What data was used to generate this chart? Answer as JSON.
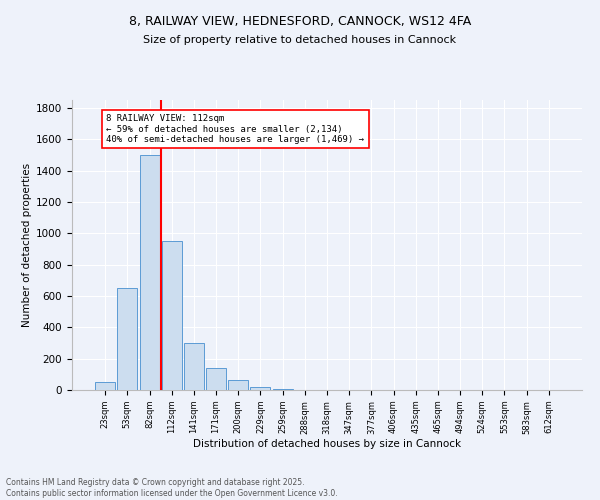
{
  "title": "8, RAILWAY VIEW, HEDNESFORD, CANNOCK, WS12 4FA",
  "subtitle": "Size of property relative to detached houses in Cannock",
  "xlabel": "Distribution of detached houses by size in Cannock",
  "ylabel": "Number of detached properties",
  "categories": [
    "23sqm",
    "53sqm",
    "82sqm",
    "112sqm",
    "141sqm",
    "171sqm",
    "200sqm",
    "229sqm",
    "259sqm",
    "288sqm",
    "318sqm",
    "347sqm",
    "377sqm",
    "406sqm",
    "435sqm",
    "465sqm",
    "494sqm",
    "524sqm",
    "553sqm",
    "583sqm",
    "612sqm"
  ],
  "values": [
    50,
    650,
    1500,
    950,
    300,
    140,
    65,
    22,
    5,
    0,
    0,
    0,
    0,
    0,
    0,
    0,
    0,
    0,
    0,
    0,
    0
  ],
  "bar_color": "#ccddef",
  "bar_edge_color": "#5b9bd5",
  "red_line_color": "red",
  "annotation_text": "8 RAILWAY VIEW: 112sqm\n← 59% of detached houses are smaller (2,134)\n40% of semi-detached houses are larger (1,469) →",
  "annotation_box_color": "white",
  "annotation_box_edge": "red",
  "ylim": [
    0,
    1850
  ],
  "yticks": [
    0,
    200,
    400,
    600,
    800,
    1000,
    1200,
    1400,
    1600,
    1800
  ],
  "bg_color": "#eef2fa",
  "footer1": "Contains HM Land Registry data © Crown copyright and database right 2025.",
  "footer2": "Contains public sector information licensed under the Open Government Licence v3.0."
}
